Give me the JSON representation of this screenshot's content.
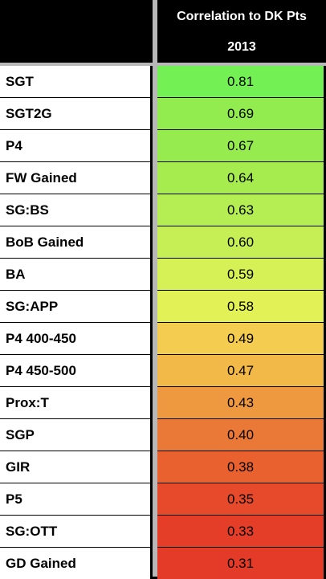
{
  "header": {
    "line1": "Correlation to DK Pts",
    "line2": "2013"
  },
  "rows": [
    {
      "label": "SGT",
      "value": "0.81",
      "color": "#73f053"
    },
    {
      "label": "SGT2G",
      "value": "0.69",
      "color": "#92ec4f"
    },
    {
      "label": "P4",
      "value": "0.67",
      "color": "#96ec4f"
    },
    {
      "label": "FW Gained",
      "value": "0.64",
      "color": "#a6ec4f"
    },
    {
      "label": "SG:BS",
      "value": "0.63",
      "color": "#b4ee52"
    },
    {
      "label": "BoB Gained",
      "value": "0.60",
      "color": "#c5ef55"
    },
    {
      "label": "BA",
      "value": "0.59",
      "color": "#d6f156"
    },
    {
      "label": "SG:APP",
      "value": "0.58",
      "color": "#e2f156"
    },
    {
      "label": "P4 400-450",
      "value": "0.49",
      "color": "#f4cc4f"
    },
    {
      "label": "P4 450-500",
      "value": "0.47",
      "color": "#f2b848"
    },
    {
      "label": "Prox:T",
      "value": "0.43",
      "color": "#ee9940"
    },
    {
      "label": "SGP",
      "value": "0.40",
      "color": "#ea7836"
    },
    {
      "label": "GIR",
      "value": "0.38",
      "color": "#e8612f"
    },
    {
      "label": "P5",
      "value": "0.35",
      "color": "#e64a2b"
    },
    {
      "label": "SG:OTT",
      "value": "0.33",
      "color": "#e43e29"
    },
    {
      "label": "GD Gained",
      "value": "0.31",
      "color": "#e43b28"
    }
  ]
}
